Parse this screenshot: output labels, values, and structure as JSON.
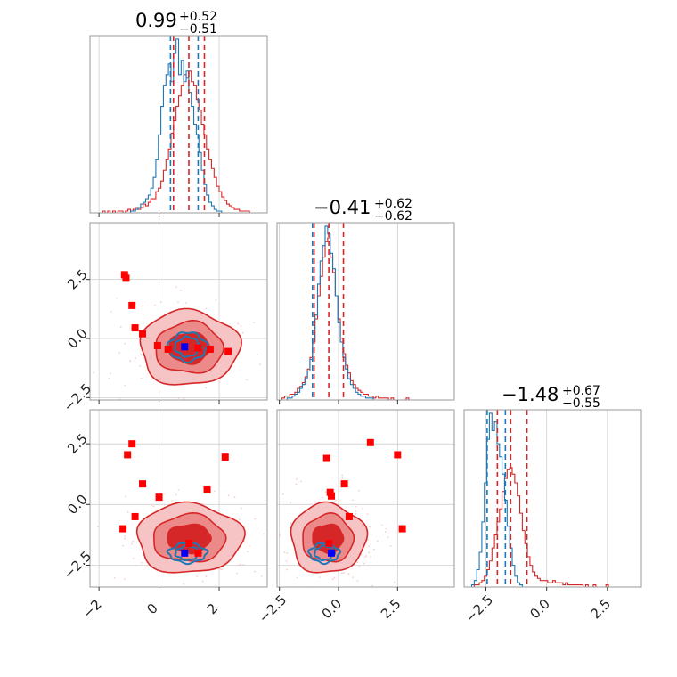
{
  "colors": {
    "inference": "#d62728",
    "truth": "#1f77b4",
    "marker_red": "#ff0000",
    "marker_blue": "#0000ff",
    "contour_fill": [
      "#f6c4c4",
      "#ec8a8a",
      "#d62728"
    ]
  },
  "chart_data": {
    "type": "corner",
    "grid": true,
    "params": [
      {
        "range": [
          -2.3,
          3.6
        ],
        "ticks": [
          -2,
          0,
          2
        ],
        "tick_labels": [
          "−2",
          "0",
          "2"
        ],
        "title": {
          "main": "0.99",
          "sup": "+0.52",
          "sub": "−0.51"
        },
        "quantiles_red": [
          0.48,
          0.99,
          1.51
        ],
        "quantiles_blue": [
          0.38,
          1.3
        ]
      },
      {
        "range": [
          -2.6,
          4.9
        ],
        "ticks": [
          -2.5,
          0.0,
          2.5
        ],
        "tick_labels": [
          "−2.5",
          "0.0",
          "2.5"
        ],
        "title": {
          "main": "−0.41",
          "sup": "+0.62",
          "sub": "−0.62"
        },
        "quantiles_red": [
          -1.03,
          -0.41,
          0.21
        ],
        "quantiles_blue": [
          -1.1
        ]
      },
      {
        "range": [
          -3.4,
          3.9
        ],
        "ticks": [
          -2.5,
          0.0,
          2.5
        ],
        "tick_labels": [
          "−2.5",
          "0.0",
          "2.5"
        ],
        "title": {
          "main": "−1.48",
          "sup": "+0.67",
          "sub": "−0.55"
        },
        "quantiles_red": [
          -2.03,
          -1.48,
          -0.81
        ],
        "quantiles_blue": [
          -2.45,
          -1.7
        ]
      }
    ],
    "hist1d": [
      {
        "edges": [
          -2.3,
          3.6
        ],
        "red": [
          0.0,
          0.0,
          0.0,
          0.0,
          0.0,
          0.01,
          0.0,
          0.01,
          0.0,
          0.01,
          0.0,
          0.01,
          0.01,
          0.0,
          0.01,
          0.02,
          0.01,
          0.02,
          0.03,
          0.02,
          0.03,
          0.05,
          0.04,
          0.06,
          0.08,
          0.08,
          0.12,
          0.14,
          0.18,
          0.24,
          0.3,
          0.36,
          0.45,
          0.52,
          0.6,
          0.66,
          0.72,
          0.78,
          0.76,
          0.8,
          0.74,
          0.72,
          0.64,
          0.58,
          0.5,
          0.44,
          0.36,
          0.3,
          0.25,
          0.2,
          0.15,
          0.12,
          0.09,
          0.07,
          0.05,
          0.04,
          0.03,
          0.02,
          0.02,
          0.01,
          0.01,
          0.01,
          0.01,
          0.0,
          0.0,
          0.0,
          0.0,
          0.0,
          0.0,
          0.0
        ],
        "blue": [
          0.0,
          0.0,
          0.0,
          0.0,
          0.0,
          0.0,
          0.0,
          0.0,
          0.0,
          0.0,
          0.0,
          0.0,
          0.0,
          0.0,
          0.0,
          0.0,
          0.01,
          0.01,
          0.02,
          0.03,
          0.05,
          0.06,
          0.08,
          0.1,
          0.14,
          0.2,
          0.3,
          0.44,
          0.6,
          0.72,
          0.78,
          0.84,
          0.74,
          0.9,
          0.98,
          0.78,
          0.86,
          0.74,
          0.8,
          0.68,
          0.6,
          0.5,
          0.44,
          0.34,
          0.24,
          0.16,
          0.1,
          0.06,
          0.04,
          0.02,
          0.01,
          0.01,
          0.0,
          0.0,
          0.0,
          0.0,
          0.0,
          0.0,
          0.0,
          0.0,
          0.0,
          0.0,
          0.0,
          0.0,
          0.0,
          0.0,
          0.0,
          0.0,
          0.0,
          0.0
        ]
      },
      {
        "edges": [
          -2.6,
          4.9
        ],
        "red": [
          0.0,
          0.0,
          0.01,
          0.02,
          0.02,
          0.03,
          0.03,
          0.04,
          0.06,
          0.07,
          0.09,
          0.12,
          0.16,
          0.22,
          0.3,
          0.42,
          0.54,
          0.64,
          0.74,
          0.82,
          0.84,
          0.74,
          0.66,
          0.54,
          0.42,
          0.32,
          0.24,
          0.18,
          0.14,
          0.1,
          0.08,
          0.06,
          0.05,
          0.04,
          0.03,
          0.03,
          0.02,
          0.02,
          0.01,
          0.02,
          0.01,
          0.01,
          0.01,
          0.01,
          0.0,
          0.01,
          0.0,
          0.0,
          0.0,
          0.0,
          0.0,
          0.01,
          0.0,
          0.0,
          0.0,
          0.0,
          0.0,
          0.0,
          0.0,
          0.0,
          0.0,
          0.0,
          0.0,
          0.0,
          0.0,
          0.0,
          0.0,
          0.0,
          0.0,
          0.0
        ],
        "blue": [
          0.0,
          0.0,
          0.0,
          0.0,
          0.01,
          0.01,
          0.02,
          0.03,
          0.04,
          0.06,
          0.08,
          0.11,
          0.15,
          0.21,
          0.3,
          0.44,
          0.6,
          0.72,
          0.8,
          0.9,
          0.86,
          0.76,
          0.68,
          0.54,
          0.4,
          0.3,
          0.22,
          0.16,
          0.11,
          0.08,
          0.06,
          0.04,
          0.03,
          0.02,
          0.02,
          0.01,
          0.01,
          0.01,
          0.0,
          0.0,
          0.0,
          0.0,
          0.0,
          0.0,
          0.0,
          0.0,
          0.0,
          0.0,
          0.0,
          0.0,
          0.0,
          0.0,
          0.0,
          0.0,
          0.0,
          0.0,
          0.0,
          0.0,
          0.0,
          0.0,
          0.0,
          0.0,
          0.0,
          0.0,
          0.0,
          0.0,
          0.0,
          0.0,
          0.0,
          0.0
        ]
      },
      {
        "edges": [
          -3.4,
          3.9
        ],
        "red": [
          0.0,
          0.0,
          0.0,
          0.0,
          0.01,
          0.01,
          0.02,
          0.03,
          0.05,
          0.08,
          0.12,
          0.18,
          0.24,
          0.3,
          0.36,
          0.44,
          0.5,
          0.54,
          0.55,
          0.52,
          0.48,
          0.42,
          0.34,
          0.26,
          0.2,
          0.14,
          0.1,
          0.07,
          0.05,
          0.04,
          0.03,
          0.03,
          0.03,
          0.02,
          0.02,
          0.03,
          0.02,
          0.02,
          0.02,
          0.01,
          0.02,
          0.01,
          0.01,
          0.01,
          0.01,
          0.01,
          0.01,
          0.0,
          0.01,
          0.0,
          0.0,
          0.01,
          0.0,
          0.0,
          0.0,
          0.0,
          0.01,
          0.0,
          0.0,
          0.0,
          0.0,
          0.0,
          0.0,
          0.0,
          0.0,
          0.0,
          0.0,
          0.0,
          0.0,
          0.0
        ],
        "blue": [
          0.0,
          0.0,
          0.0,
          0.01,
          0.03,
          0.08,
          0.16,
          0.3,
          0.48,
          0.68,
          0.8,
          0.72,
          0.76,
          0.66,
          0.6,
          0.52,
          0.4,
          0.28,
          0.18,
          0.1,
          0.05,
          0.02,
          0.01,
          0.0,
          0.0,
          0.0,
          0.0,
          0.0,
          0.0,
          0.0,
          0.0,
          0.0,
          0.0,
          0.0,
          0.0,
          0.0,
          0.0,
          0.0,
          0.0,
          0.0,
          0.0,
          0.0,
          0.0,
          0.0,
          0.0,
          0.0,
          0.0,
          0.0,
          0.0,
          0.0,
          0.0,
          0.0,
          0.0,
          0.0,
          0.0,
          0.0,
          0.0,
          0.0,
          0.0,
          0.0,
          0.0,
          0.0,
          0.0,
          0.0,
          0.0,
          0.0,
          0.0,
          0.0,
          0.0,
          0.0
        ]
      }
    ],
    "panels2d": [
      {
        "x": 0,
        "y": 1,
        "posterior_center": [
          1.0,
          -0.4
        ],
        "sigma": [
          0.75,
          0.72
        ],
        "blue_contours": [
          [
            0.95,
            -0.35,
            0.62,
            0.6
          ],
          [
            0.95,
            -0.35,
            0.42,
            0.4
          ]
        ],
        "red_points": [
          [
            -1.15,
            2.7
          ],
          [
            -1.1,
            2.55
          ],
          [
            -0.9,
            1.4
          ],
          [
            -0.8,
            0.45
          ],
          [
            -0.55,
            0.2
          ],
          [
            -0.05,
            -0.3
          ],
          [
            0.3,
            -0.45
          ],
          [
            1.3,
            -0.4
          ],
          [
            1.7,
            -0.45
          ],
          [
            2.3,
            -0.55
          ]
        ],
        "blue_points": [
          [
            0.85,
            -0.35
          ]
        ]
      },
      {
        "x": 0,
        "y": 2,
        "posterior_center": [
          1.0,
          -1.4
        ],
        "sigma": [
          0.8,
          0.65
        ],
        "blue_contours": [
          [
            0.95,
            -2.0,
            0.62,
            0.4
          ],
          [
            0.95,
            -2.0,
            0.4,
            0.28
          ]
        ],
        "red_points": [
          [
            -1.2,
            -1.0
          ],
          [
            -0.9,
            2.5
          ],
          [
            -1.05,
            2.05
          ],
          [
            -0.8,
            -0.5
          ],
          [
            -0.55,
            0.85
          ],
          [
            0.0,
            0.3
          ],
          [
            1.0,
            -1.6
          ],
          [
            1.3,
            -2.0
          ],
          [
            1.6,
            0.6
          ],
          [
            2.2,
            1.95
          ]
        ],
        "blue_points": [
          [
            0.85,
            -2.0
          ]
        ]
      },
      {
        "x": 1,
        "y": 2,
        "posterior_center": [
          -0.45,
          -1.4
        ],
        "sigma": [
          0.72,
          0.65
        ],
        "blue_contours": [
          [
            -0.6,
            -2.0,
            0.62,
            0.4
          ],
          [
            -0.6,
            -2.0,
            0.4,
            0.28
          ]
        ],
        "red_points": [
          [
            -0.5,
            1.9
          ],
          [
            -0.35,
            0.5
          ],
          [
            -0.3,
            0.35
          ],
          [
            0.25,
            0.85
          ],
          [
            0.45,
            -0.5
          ],
          [
            -0.4,
            -1.6
          ],
          [
            1.35,
            2.55
          ],
          [
            2.5,
            2.05
          ],
          [
            2.7,
            -1.0
          ]
        ],
        "blue_points": [
          [
            -0.3,
            -2.0
          ]
        ]
      }
    ]
  }
}
